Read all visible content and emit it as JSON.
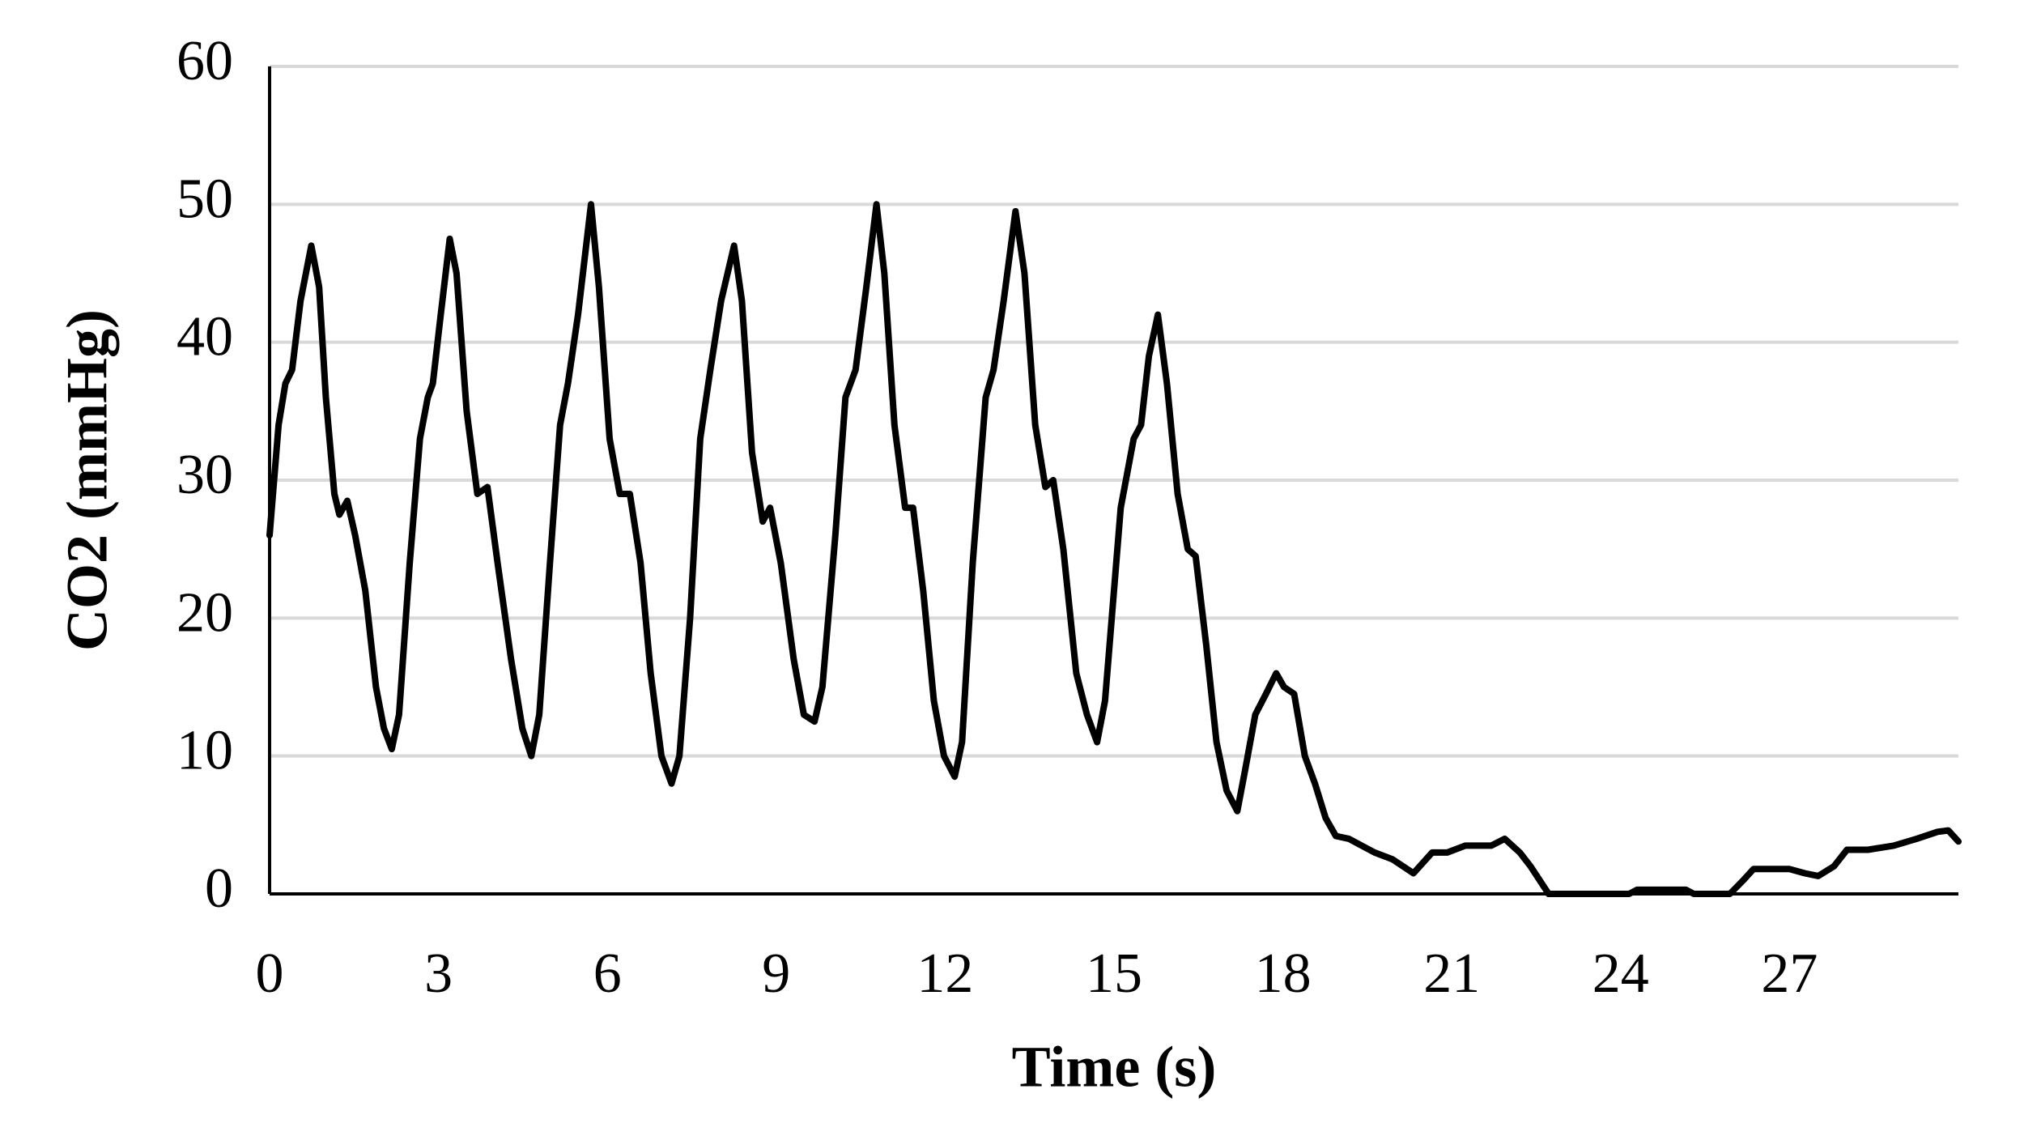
{
  "chart_data": {
    "type": "line",
    "x_label": "Time (s)",
    "y_label": "CO2 (mmHg)",
    "xlim": [
      0,
      30
    ],
    "xticks": [
      0,
      3,
      6,
      9,
      12,
      15,
      18,
      21,
      24,
      27
    ],
    "ylim": [
      0,
      60
    ],
    "yticks": [
      0,
      10,
      20,
      30,
      40,
      50,
      60
    ],
    "grid": true,
    "x": [
      0,
      0.16,
      0.28,
      0.4,
      0.55,
      0.74,
      0.88,
      1.0,
      1.15,
      1.24,
      1.38,
      1.52,
      1.7,
      1.89,
      2.03,
      2.17,
      2.3,
      2.49,
      2.67,
      2.81,
      2.9,
      3.04,
      3.2,
      3.32,
      3.5,
      3.69,
      3.87,
      4.05,
      4.29,
      4.49,
      4.65,
      4.79,
      4.98,
      5.16,
      5.3,
      5.48,
      5.71,
      5.85,
      6.04,
      6.22,
      6.4,
      6.59,
      6.77,
      6.96,
      7.14,
      7.28,
      7.47,
      7.65,
      7.83,
      8.02,
      8.25,
      8.39,
      8.57,
      8.76,
      8.89,
      9.08,
      9.31,
      9.49,
      9.68,
      9.82,
      10.05,
      10.23,
      10.41,
      10.6,
      10.78,
      10.92,
      11.1,
      11.29,
      11.43,
      11.61,
      11.8,
      11.98,
      12.17,
      12.3,
      12.49,
      12.72,
      12.86,
      13.04,
      13.25,
      13.41,
      13.6,
      13.78,
      13.92,
      14.1,
      14.33,
      14.52,
      14.7,
      14.84,
      15.12,
      15.35,
      15.48,
      15.62,
      15.78,
      15.94,
      16.13,
      16.31,
      16.45,
      16.64,
      16.82,
      17.0,
      17.19,
      17.33,
      17.51,
      17.7,
      17.88,
      18.02,
      18.2,
      18.39,
      18.57,
      18.76,
      18.94,
      19.17,
      19.4,
      19.63,
      19.95,
      20.32,
      20.65,
      20.92,
      21.24,
      21.7,
      21.94,
      22.21,
      22.4,
      22.72,
      24.15,
      24.29,
      25.16,
      25.3,
      25.94,
      26.18,
      26.36,
      27.0,
      27.27,
      27.51,
      27.79,
      28.02,
      28.39,
      28.85,
      29.26,
      29.63,
      29.82,
      30.0
    ],
    "series": [
      {
        "color": "#000000",
        "values": [
          26,
          34,
          37,
          38,
          43,
          47,
          44,
          36,
          29,
          27.5,
          28.5,
          26,
          22,
          15,
          12,
          10.5,
          13,
          24,
          33,
          36,
          37,
          42,
          47.5,
          45,
          35,
          29,
          29.5,
          24,
          17,
          12,
          10,
          13,
          24,
          34,
          37,
          42,
          50,
          44,
          33,
          29,
          29,
          24,
          16,
          10,
          8,
          10,
          20,
          33,
          38,
          43,
          47,
          43,
          32,
          27,
          28,
          24,
          17,
          13,
          12.5,
          15,
          26,
          36,
          38,
          44,
          50,
          45,
          34,
          28,
          28,
          22,
          14,
          10,
          8.5,
          11,
          24,
          36,
          38,
          43,
          49.5,
          45,
          34,
          29.5,
          30,
          25,
          16,
          13,
          11,
          14,
          28,
          33,
          34,
          39,
          42,
          37,
          29,
          25,
          24.5,
          18,
          11,
          7.5,
          6,
          9,
          13,
          14.5,
          16,
          15,
          14.5,
          10,
          8,
          5.5,
          4.2,
          4,
          3.5,
          3,
          2.5,
          1.5,
          3,
          3,
          3.5,
          3.5,
          4,
          3,
          2,
          0,
          0,
          0.3,
          0.3,
          0,
          0,
          1,
          1.8,
          1.8,
          1.5,
          1.3,
          2,
          3.2,
          3.2,
          3.5,
          4,
          4.5,
          4.6,
          3.8
        ]
      }
    ]
  }
}
